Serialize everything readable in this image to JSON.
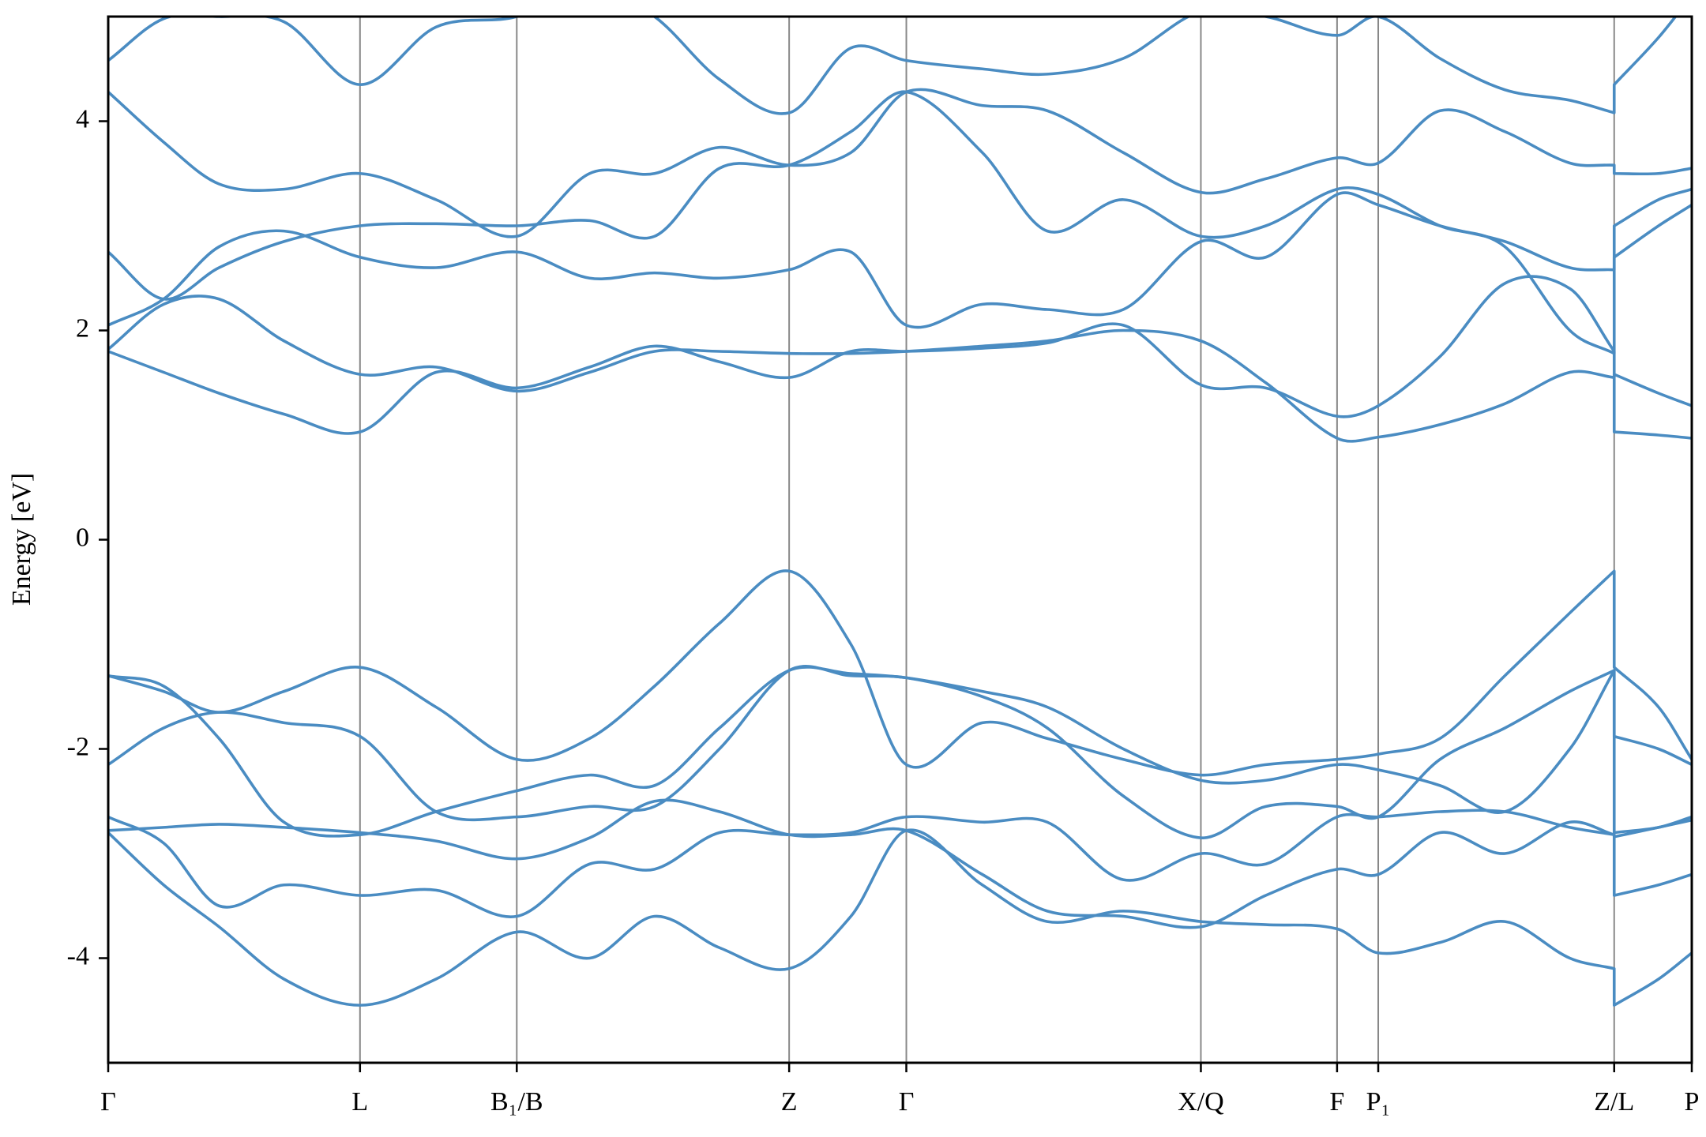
{
  "chart_data": {
    "type": "line",
    "ylabel": "Energy [eV]",
    "color": "#4a8cc2",
    "grid": true,
    "xlim": [
      0,
      1
    ],
    "ylim": [
      -5,
      5
    ],
    "yticks": [
      -4,
      -2,
      0,
      2,
      4
    ],
    "xticks": [
      {
        "value": 0,
        "label": "Γ"
      },
      {
        "value": 0.159,
        "label": "L"
      },
      {
        "value": 0.258,
        "label": "B₁/B"
      },
      {
        "value": 0.43,
        "label": "Z"
      },
      {
        "value": 0.504,
        "label": "Γ"
      },
      {
        "value": 0.69,
        "label": "X/Q"
      },
      {
        "value": 0.776,
        "label": "F"
      },
      {
        "value": 0.802,
        "label": "P₁"
      },
      {
        "value": 0.951,
        "label": "Z/L"
      },
      {
        "value": 1,
        "label": "P"
      }
    ],
    "x": [
      0,
      0.035,
      0.07,
      0.111,
      0.159,
      0.207,
      0.258,
      0.304,
      0.345,
      0.386,
      0.43,
      0.469,
      0.504,
      0.552,
      0.593,
      0.641,
      0.69,
      0.731,
      0.776,
      0.802,
      0.841,
      0.882,
      0.923,
      0.951,
      0.951,
      0.979,
      1
    ],
    "series": [
      {
        "values": [
          -1.3,
          -1.45,
          -1.65,
          -1.45,
          -1.22,
          -1.6,
          -2.1,
          -1.9,
          -1.4,
          -0.8,
          -0.3,
          -1.0,
          -2.15,
          -1.75,
          -1.9,
          -2.1,
          -2.25,
          -2.15,
          -2.1,
          -2.05,
          -1.9,
          -1.3,
          -0.7,
          -0.3,
          -1.22,
          -1.6,
          -2.1
        ]
      },
      {
        "values": [
          -1.3,
          -1.4,
          -1.9,
          -2.7,
          -2.82,
          -2.6,
          -2.4,
          -2.25,
          -2.35,
          -1.8,
          -1.25,
          -1.28,
          -1.32,
          -1.45,
          -1.6,
          -2.0,
          -2.3,
          -2.3,
          -2.15,
          -2.2,
          -2.35,
          -2.6,
          -2.0,
          -1.25,
          -1.88,
          -2.0,
          -2.15
        ]
      },
      {
        "values": [
          -2.15,
          -1.8,
          -1.65,
          -1.75,
          -1.88,
          -2.6,
          -2.65,
          -2.55,
          -2.55,
          -2.0,
          -1.25,
          -1.3,
          -1.32,
          -1.5,
          -1.8,
          -2.45,
          -2.85,
          -2.55,
          -2.55,
          -2.65,
          -2.1,
          -1.8,
          -1.45,
          -1.25,
          -2.8,
          -2.75,
          -2.65
        ]
      },
      {
        "values": [
          -2.65,
          -2.9,
          -3.5,
          -3.3,
          -3.4,
          -3.35,
          -3.6,
          -3.1,
          -3.15,
          -2.8,
          -2.82,
          -2.8,
          -2.65,
          -2.7,
          -2.7,
          -3.25,
          -3.0,
          -3.1,
          -2.65,
          -2.65,
          -2.6,
          -2.6,
          -2.75,
          -2.82,
          -3.4,
          -3.3,
          -3.2
        ]
      },
      {
        "values": [
          -2.78,
          -2.75,
          -2.72,
          -2.75,
          -2.8,
          -2.88,
          -3.05,
          -2.85,
          -2.5,
          -2.6,
          -2.82,
          -2.82,
          -2.78,
          -3.2,
          -3.55,
          -3.6,
          -3.7,
          -3.4,
          -3.15,
          -3.2,
          -2.8,
          -3.0,
          -2.7,
          -2.82,
          -2.84,
          -2.75,
          -2.68
        ]
      },
      {
        "values": [
          -2.8,
          -3.3,
          -3.7,
          -4.2,
          -4.45,
          -4.2,
          -3.75,
          -4.0,
          -3.6,
          -3.9,
          -4.1,
          -3.6,
          -2.78,
          -3.3,
          -3.65,
          -3.55,
          -3.65,
          -3.68,
          -3.72,
          -3.95,
          -3.85,
          -3.65,
          -4.0,
          -4.1,
          -4.45,
          -4.2,
          -3.95
        ]
      },
      {
        "values": [
          1.8,
          1.6,
          1.4,
          1.2,
          1.03,
          1.6,
          1.45,
          1.65,
          1.85,
          1.7,
          1.55,
          1.8,
          1.8,
          1.83,
          1.88,
          2.05,
          1.48,
          1.45,
          1.18,
          1.28,
          1.75,
          2.45,
          2.4,
          1.8,
          1.03,
          1.0,
          0.97
        ]
      },
      {
        "values": [
          1.82,
          2.25,
          2.3,
          1.9,
          1.58,
          1.65,
          1.42,
          1.6,
          1.8,
          1.8,
          1.78,
          1.78,
          1.8,
          1.85,
          1.9,
          2.0,
          1.9,
          1.5,
          0.97,
          0.98,
          1.1,
          1.3,
          1.6,
          1.55,
          1.58,
          1.4,
          1.28
        ]
      },
      {
        "values": [
          2.05,
          2.3,
          2.8,
          2.95,
          2.7,
          2.6,
          2.75,
          2.5,
          2.55,
          2.5,
          2.58,
          2.75,
          2.05,
          2.25,
          2.2,
          2.2,
          2.85,
          2.7,
          3.3,
          3.2,
          3.0,
          2.85,
          2.6,
          2.58,
          2.7,
          3.0,
          3.2
        ]
      },
      {
        "values": [
          2.75,
          2.3,
          2.6,
          2.85,
          3.0,
          3.02,
          3.0,
          3.05,
          2.9,
          3.55,
          3.58,
          3.9,
          4.28,
          3.7,
          2.95,
          3.25,
          2.9,
          3.0,
          3.35,
          3.3,
          3.0,
          2.8,
          2.0,
          1.78,
          3.0,
          3.25,
          3.35
        ]
      },
      {
        "values": [
          4.28,
          3.8,
          3.4,
          3.35,
          3.5,
          3.25,
          2.9,
          3.5,
          3.5,
          3.75,
          3.58,
          3.7,
          4.28,
          4.15,
          4.1,
          3.7,
          3.32,
          3.45,
          3.65,
          3.6,
          4.1,
          3.9,
          3.6,
          3.58,
          3.5,
          3.5,
          3.55
        ]
      },
      {
        "values": [
          4.58,
          4.98,
          5.0,
          4.95,
          4.35,
          4.9,
          5.0,
          5.3,
          5.0,
          4.4,
          4.08,
          4.7,
          4.58,
          4.5,
          4.45,
          4.6,
          5.05,
          5.0,
          4.82,
          5.0,
          4.6,
          4.3,
          4.2,
          4.08,
          4.35,
          4.8,
          5.2
        ]
      }
    ]
  }
}
